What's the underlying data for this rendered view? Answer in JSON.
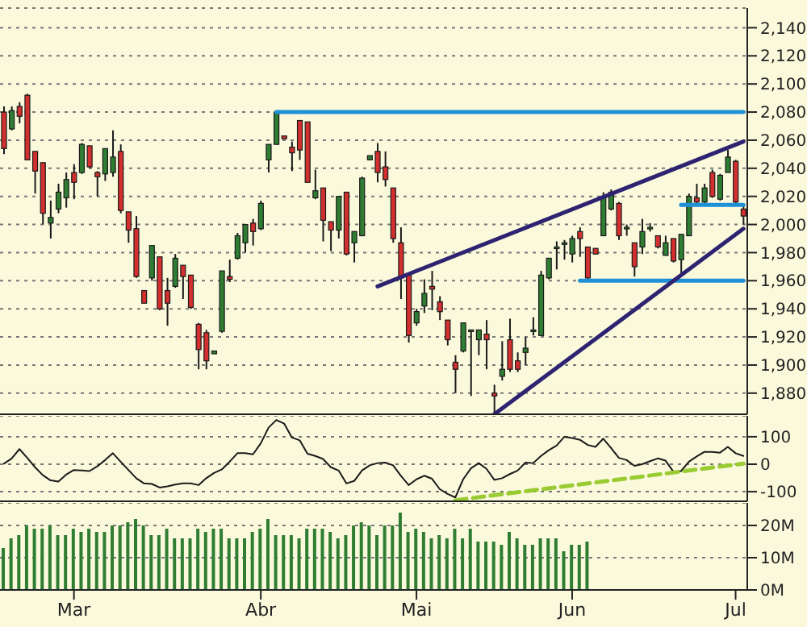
{
  "chart_data": [
    {
      "type": "candlestick",
      "tick_labels": "y",
      "grid": "y",
      "marker": "none",
      "categories": [
        null,
        null,
        null,
        null,
        null,
        null,
        null,
        null,
        null,
        null,
        null,
        null,
        null,
        null,
        null,
        null,
        null,
        null,
        null,
        null,
        null,
        null,
        null,
        null,
        null,
        null,
        null,
        null,
        null,
        null,
        null,
        null,
        null,
        null,
        null,
        null,
        null,
        null,
        null,
        null,
        null,
        null,
        null,
        null,
        null,
        null,
        null,
        null,
        null,
        null,
        null,
        null,
        null,
        null,
        null,
        null,
        null,
        null,
        null,
        null,
        null,
        null,
        null,
        null,
        null,
        null,
        null,
        null,
        null,
        null,
        null,
        null,
        null,
        null,
        null,
        null,
        null,
        null,
        null,
        null,
        null,
        null,
        null,
        null,
        null,
        null,
        null,
        null,
        null,
        null,
        null,
        null,
        null,
        null,
        null,
        null
      ],
      "ohlc": [
        [
          2080,
          2084,
          2050,
          2054
        ],
        [
          2068,
          2084,
          2067,
          2081
        ],
        [
          2084,
          2087,
          2072,
          2077
        ],
        [
          2092,
          2093,
          2046,
          2046
        ],
        [
          2052,
          2052,
          2022,
          2038
        ],
        [
          2044,
          2044,
          2000,
          2008
        ],
        [
          2001,
          2017,
          1990,
          2005
        ],
        [
          2011,
          2029,
          2008,
          2023
        ],
        [
          2019,
          2037,
          2012,
          2032
        ],
        [
          2037,
          2043,
          2018,
          2030
        ],
        [
          2037,
          2058,
          2036,
          2057
        ],
        [
          2056,
          2056,
          2040,
          2041
        ],
        [
          2037,
          2038,
          2020,
          2034
        ],
        [
          2036,
          2054,
          2031,
          2054
        ],
        [
          2037,
          2067,
          2034,
          2048
        ],
        [
          2052,
          2057,
          2008,
          2010
        ],
        [
          2009,
          2009,
          1987,
          1996
        ],
        [
          1997,
          2006,
          1962,
          1963
        ],
        [
          1953,
          1953,
          1944,
          1944
        ],
        [
          1962,
          1985,
          1960,
          1985
        ],
        [
          1977,
          1977,
          1939,
          1940
        ],
        [
          1953,
          1962,
          1928,
          1944
        ],
        [
          1956,
          1979,
          1955,
          1976
        ],
        [
          1971,
          1971,
          1947,
          1963
        ],
        [
          1964,
          1964,
          1940,
          1941
        ],
        [
          1929,
          1930,
          1897,
          1911
        ],
        [
          1923,
          1925,
          1897,
          1903
        ],
        [
          1908,
          1910,
          1908,
          1910
        ],
        [
          1924,
          1967,
          1923,
          1967
        ],
        [
          1963,
          1975,
          1959,
          1961
        ],
        [
          1976,
          1994,
          1975,
          1992
        ],
        [
          1987,
          2000,
          1980,
          2000
        ],
        [
          2001,
          2004,
          1985,
          1995
        ],
        [
          1997,
          2017,
          1996,
          2015
        ],
        [
          2046,
          2057,
          2037,
          2057
        ],
        [
          2057,
          2080,
          2057,
          2080
        ],
        [
          2063,
          2063,
          2061,
          2061
        ],
        [
          2055,
          2059,
          2038,
          2051
        ],
        [
          2074,
          2074,
          2046,
          2053
        ],
        [
          2073,
          2073,
          2030,
          2030
        ],
        [
          2019,
          2039,
          2018,
          2024
        ],
        [
          2026,
          2026,
          1988,
          2003
        ],
        [
          2002,
          2002,
          1981,
          1996
        ],
        [
          1996,
          2020,
          1990,
          2020
        ],
        [
          2023,
          2023,
          1978,
          1979
        ],
        [
          1987,
          1995,
          1973,
          1995
        ],
        [
          1992,
          2034,
          1992,
          2033
        ],
        [
          2046,
          2049,
          2046,
          2049
        ],
        [
          2052,
          2058,
          2030,
          2037
        ],
        [
          2041,
          2052,
          2027,
          2032
        ],
        [
          2026,
          2026,
          1987,
          1990
        ],
        [
          1987,
          1998,
          1947,
          1962
        ],
        [
          1964,
          1964,
          1916,
          1921
        ],
        [
          1930,
          1940,
          1928,
          1938
        ],
        [
          1942,
          1961,
          1937,
          1951
        ],
        [
          1956,
          1967,
          1939,
          1954
        ],
        [
          1945,
          1949,
          1932,
          1938
        ],
        [
          1932,
          1932,
          1914,
          1918
        ],
        [
          1902,
          1907,
          1880,
          1897
        ],
        [
          1910,
          1930,
          1909,
          1930
        ],
        [
          1924,
          1925,
          1878,
          1925
        ],
        [
          1918,
          1925,
          1907,
          1925
        ],
        [
          1922,
          1932,
          1897,
          1918
        ],
        [
          1880,
          1886,
          1865,
          1878
        ],
        [
          1892,
          1917,
          1889,
          1897
        ],
        [
          1918,
          1933,
          1895,
          1897
        ],
        [
          1903,
          1909,
          1895,
          1897
        ],
        [
          1909,
          1920,
          1900,
          1912
        ],
        [
          1925,
          1934,
          1921,
          1925
        ],
        [
          1921,
          1967,
          1921,
          1964
        ],
        [
          1962,
          1976,
          1961,
          1976
        ],
        [
          1984,
          1988,
          1968,
          1984
        ],
        [
          1987,
          1989,
          1975,
          1987
        ],
        [
          1979,
          1992,
          1973,
          1990
        ],
        [
          1995,
          1998,
          1977,
          1990
        ],
        [
          1984,
          1984,
          1961,
          1962
        ],
        [
          1983,
          1983,
          1979,
          1979
        ],
        [
          1992,
          2023,
          1992,
          2019
        ],
        [
          2011,
          2025,
          2010,
          2023
        ],
        [
          2015,
          2016,
          1989,
          1992
        ],
        [
          1998,
          2000,
          1992,
          1998
        ],
        [
          1987,
          1987,
          1963,
          1970
        ],
        [
          1984,
          2004,
          1979,
          1995
        ],
        [
          1998,
          2001,
          1995,
          1998
        ],
        [
          1992,
          1992,
          1983,
          1984
        ],
        [
          1978,
          1992,
          1978,
          1987
        ],
        [
          1990,
          1990,
          1973,
          1974
        ],
        [
          1975,
          1993,
          1964,
          1993
        ],
        [
          1992,
          2022,
          1992,
          2020
        ],
        [
          2019,
          2029,
          2015,
          2016
        ],
        [
          2016,
          2029,
          2014,
          2026
        ],
        [
          2037,
          2039,
          2019,
          2020
        ],
        [
          2018,
          2036,
          2017,
          2035
        ],
        [
          2037,
          2053,
          2037,
          2048
        ],
        [
          2045,
          2046,
          2015,
          2016
        ],
        [
          2011,
          2015,
          2000,
          2006
        ]
      ],
      "series": [
        {
          "type": "line",
          "color": "#1e90d8",
          "values": [
            null,
            null,
            null,
            null,
            null,
            null,
            null,
            null,
            null,
            null,
            null,
            null,
            null,
            null,
            null,
            null,
            null,
            null,
            null,
            null,
            null,
            null,
            null,
            null,
            null,
            null,
            null,
            null,
            null,
            null,
            null,
            null,
            null,
            null,
            null,
            2080,
            null,
            null,
            null,
            null,
            null,
            null,
            null,
            null,
            null,
            null,
            null,
            null,
            null,
            null,
            null,
            null,
            null,
            null,
            null,
            null,
            null,
            null,
            null,
            null,
            null,
            null,
            null,
            null,
            null,
            null,
            null,
            null,
            null,
            null,
            null,
            null,
            null,
            null,
            null,
            null,
            null,
            null,
            null,
            null,
            null,
            null,
            null,
            null,
            null,
            null,
            null,
            null,
            null,
            null,
            null,
            null,
            null,
            null,
            null,
            2080
          ]
        },
        {
          "type": "line",
          "color": "#1e90d8",
          "values": [
            null,
            null,
            null,
            null,
            null,
            null,
            null,
            null,
            null,
            null,
            null,
            null,
            null,
            null,
            null,
            null,
            null,
            null,
            null,
            null,
            null,
            null,
            null,
            null,
            null,
            null,
            null,
            null,
            null,
            null,
            null,
            null,
            null,
            null,
            null,
            null,
            null,
            null,
            null,
            null,
            null,
            null,
            null,
            null,
            null,
            null,
            null,
            null,
            null,
            null,
            null,
            null,
            null,
            null,
            null,
            null,
            null,
            null,
            null,
            null,
            null,
            null,
            null,
            null,
            null,
            null,
            null,
            null,
            null,
            null,
            null,
            null,
            null,
            null,
            1960,
            null,
            null,
            null,
            null,
            null,
            null,
            null,
            null,
            null,
            null,
            null,
            null,
            null,
            null,
            null,
            null,
            null,
            null,
            null,
            null,
            1960
          ]
        },
        {
          "type": "line",
          "color": "#1e90d8",
          "values": [
            null,
            null,
            null,
            null,
            null,
            null,
            null,
            null,
            null,
            null,
            null,
            null,
            null,
            null,
            null,
            null,
            null,
            null,
            null,
            null,
            null,
            null,
            null,
            null,
            null,
            null,
            null,
            null,
            null,
            null,
            null,
            null,
            null,
            null,
            null,
            null,
            null,
            null,
            null,
            null,
            null,
            null,
            null,
            null,
            null,
            null,
            null,
            null,
            null,
            null,
            null,
            null,
            null,
            null,
            null,
            null,
            null,
            null,
            null,
            null,
            null,
            null,
            null,
            null,
            null,
            null,
            null,
            null,
            null,
            null,
            null,
            null,
            null,
            null,
            null,
            null,
            null,
            null,
            null,
            null,
            null,
            null,
            null,
            null,
            null,
            null,
            null,
            2014,
            null,
            null,
            null,
            null,
            null,
            null,
            null,
            2014
          ]
        },
        {
          "type": "line",
          "color": "#2d2370",
          "values": [
            null,
            null,
            null,
            null,
            null,
            null,
            null,
            null,
            null,
            null,
            null,
            null,
            null,
            null,
            null,
            null,
            null,
            null,
            null,
            null,
            null,
            null,
            null,
            null,
            null,
            null,
            null,
            null,
            null,
            null,
            null,
            null,
            null,
            null,
            null,
            null,
            null,
            null,
            null,
            null,
            null,
            null,
            null,
            null,
            null,
            null,
            null,
            null,
            1956,
            null,
            null,
            null,
            null,
            null,
            null,
            null,
            null,
            null,
            null,
            null,
            null,
            null,
            null,
            null,
            null,
            null,
            null,
            null,
            null,
            null,
            null,
            null,
            null,
            null,
            null,
            null,
            null,
            null,
            null,
            null,
            null,
            null,
            null,
            null,
            null,
            null,
            null,
            null,
            null,
            null,
            null,
            null,
            null,
            null,
            null,
            2059
          ]
        },
        {
          "type": "line",
          "color": "#2d2370",
          "values": [
            null,
            null,
            null,
            null,
            null,
            null,
            null,
            null,
            null,
            null,
            null,
            null,
            null,
            null,
            null,
            null,
            null,
            null,
            null,
            null,
            null,
            null,
            null,
            null,
            null,
            null,
            null,
            null,
            null,
            null,
            null,
            null,
            null,
            null,
            null,
            null,
            null,
            null,
            null,
            null,
            null,
            null,
            null,
            null,
            null,
            null,
            null,
            null,
            null,
            null,
            null,
            null,
            null,
            null,
            null,
            null,
            null,
            null,
            null,
            null,
            null,
            null,
            null,
            1865,
            null,
            null,
            null,
            null,
            null,
            null,
            null,
            null,
            null,
            null,
            null,
            null,
            null,
            null,
            null,
            null,
            null,
            null,
            null,
            null,
            null,
            null,
            null,
            null,
            null,
            null,
            null,
            null,
            null,
            null,
            null,
            1997
          ]
        }
      ],
      "ylim": [
        1865,
        2154
      ],
      "yticks": [
        {
          "value": 1880,
          "label": "1,880"
        },
        {
          "value": 1900,
          "label": "1,900"
        },
        {
          "value": 1920,
          "label": "1,920"
        },
        {
          "value": 1940,
          "label": "1,940"
        },
        {
          "value": 1960,
          "label": "1,960"
        },
        {
          "value": 1980,
          "label": "1,980"
        },
        {
          "value": 2000,
          "label": "2,000"
        },
        {
          "value": 2020,
          "label": "2,020"
        },
        {
          "value": 2040,
          "label": "2,040"
        },
        {
          "value": 2060,
          "label": "2,060"
        },
        {
          "value": 2080,
          "label": "2,080"
        },
        {
          "value": 2100,
          "label": "2,100"
        },
        {
          "value": 2120,
          "label": "2,120"
        },
        {
          "value": 2140,
          "label": "2,140"
        }
      ]
    },
    {
      "type": "line",
      "tick_labels": "y",
      "grid": "y",
      "marker": "none",
      "categories": [
        null,
        null,
        null,
        null,
        null,
        null,
        null,
        null,
        null,
        null,
        null,
        null,
        null,
        null,
        null,
        null,
        null,
        null,
        null,
        null,
        null,
        null,
        null,
        null,
        null,
        null,
        null,
        null,
        null,
        null,
        null,
        null,
        null,
        null,
        null,
        null,
        null,
        null,
        null,
        null,
        null,
        null,
        null,
        null,
        null,
        null,
        null,
        null,
        null,
        null,
        null,
        null,
        null,
        null,
        null,
        null,
        null,
        null,
        null,
        null,
        null,
        null,
        null,
        null,
        null,
        null,
        null,
        null,
        null,
        null,
        null,
        null,
        null,
        null,
        null,
        null,
        null,
        null,
        null,
        null,
        null,
        null,
        null,
        null,
        null,
        null,
        null,
        null,
        null,
        null,
        null,
        null,
        null,
        null,
        null,
        null
      ],
      "series": [
        {
          "color": "#1a1a1a",
          "values": [
            2,
            21,
            55,
            23,
            -11,
            -40,
            -59,
            -63,
            -38,
            -21,
            -23,
            -25,
            -8,
            15,
            40,
            9,
            -21,
            -51,
            -70,
            -72,
            -85,
            -81,
            -74,
            -70,
            -70,
            -76,
            -51,
            -32,
            -19,
            9,
            40,
            40,
            36,
            76,
            133,
            161,
            148,
            97,
            87,
            38,
            30,
            19,
            -11,
            -23,
            -70,
            -61,
            -23,
            -4,
            4,
            6,
            -4,
            -42,
            -76,
            -55,
            -42,
            -53,
            -91,
            -108,
            -121,
            -55,
            -15,
            4,
            -17,
            -57,
            -51,
            -36,
            -23,
            6,
            4,
            30,
            51,
            68,
            100,
            95,
            89,
            70,
            63,
            93,
            59,
            23,
            15,
            -6,
            0,
            11,
            21,
            13,
            -27,
            -25,
            9,
            28,
            45,
            45,
            42,
            63,
            40,
            30
          ]
        },
        {
          "color": "#99cc33",
          "line_style": "dashed",
          "values": [
            null,
            null,
            null,
            null,
            null,
            null,
            null,
            null,
            null,
            null,
            null,
            null,
            null,
            null,
            null,
            null,
            null,
            null,
            null,
            null,
            null,
            null,
            null,
            null,
            null,
            null,
            null,
            null,
            null,
            null,
            null,
            null,
            null,
            null,
            null,
            null,
            null,
            null,
            null,
            null,
            null,
            null,
            null,
            null,
            null,
            null,
            null,
            null,
            null,
            null,
            null,
            null,
            null,
            null,
            null,
            null,
            null,
            null,
            -131,
            null,
            null,
            null,
            null,
            null,
            null,
            null,
            null,
            null,
            null,
            null,
            null,
            null,
            null,
            null,
            null,
            null,
            null,
            null,
            null,
            null,
            null,
            null,
            null,
            null,
            null,
            null,
            null,
            null,
            null,
            null,
            null,
            null,
            null,
            null,
            null,
            2
          ]
        }
      ],
      "ylim": [
        -135,
        176
      ],
      "yticks": [
        -100,
        0,
        100
      ]
    },
    {
      "type": "bar",
      "grid": "y",
      "color": "#2e7d32",
      "categories": [
        null,
        null,
        null,
        null,
        null,
        null,
        null,
        null,
        null,
        "Mar",
        null,
        null,
        null,
        null,
        null,
        null,
        null,
        null,
        null,
        null,
        null,
        null,
        null,
        null,
        null,
        null,
        null,
        null,
        null,
        null,
        null,
        null,
        null,
        "Abr",
        null,
        null,
        null,
        null,
        null,
        null,
        null,
        null,
        null,
        null,
        null,
        null,
        null,
        null,
        null,
        null,
        null,
        null,
        null,
        "Mai",
        null,
        null,
        null,
        null,
        null,
        null,
        null,
        null,
        null,
        null,
        null,
        null,
        null,
        null,
        null,
        null,
        null,
        null,
        null,
        "Jun",
        null,
        null,
        null,
        null,
        null,
        null,
        null,
        null,
        null,
        null,
        null,
        null,
        null,
        null,
        null,
        null,
        null,
        null,
        null,
        null,
        "Jul",
        null
      ],
      "values": [
        13,
        16,
        17,
        20,
        19,
        19,
        20,
        17,
        17,
        19,
        18,
        19,
        18,
        18,
        20,
        20,
        21,
        22,
        20,
        17,
        17,
        19,
        16,
        16,
        16,
        19,
        18,
        19,
        19,
        16,
        16,
        16,
        18,
        19,
        22,
        17,
        17,
        17,
        16,
        19,
        19,
        19,
        18,
        16,
        17,
        20,
        21,
        20,
        17,
        20,
        20,
        24,
        18,
        19,
        18,
        16,
        17,
        16,
        19,
        16,
        19,
        15,
        15,
        15,
        14,
        18,
        16,
        14,
        14,
        16,
        16,
        16,
        12,
        14,
        14,
        15,
        null,
        null,
        null,
        null,
        null,
        null,
        null,
        null,
        null,
        null,
        null,
        null,
        null,
        null,
        null,
        null,
        null,
        null,
        null,
        null
      ],
      "ylim": [
        0,
        27
      ],
      "yticks": [
        {
          "value": 0,
          "label": "0M"
        },
        {
          "value": 10,
          "label": "10M"
        },
        {
          "value": 20,
          "label": "20M"
        }
      ]
    }
  ]
}
